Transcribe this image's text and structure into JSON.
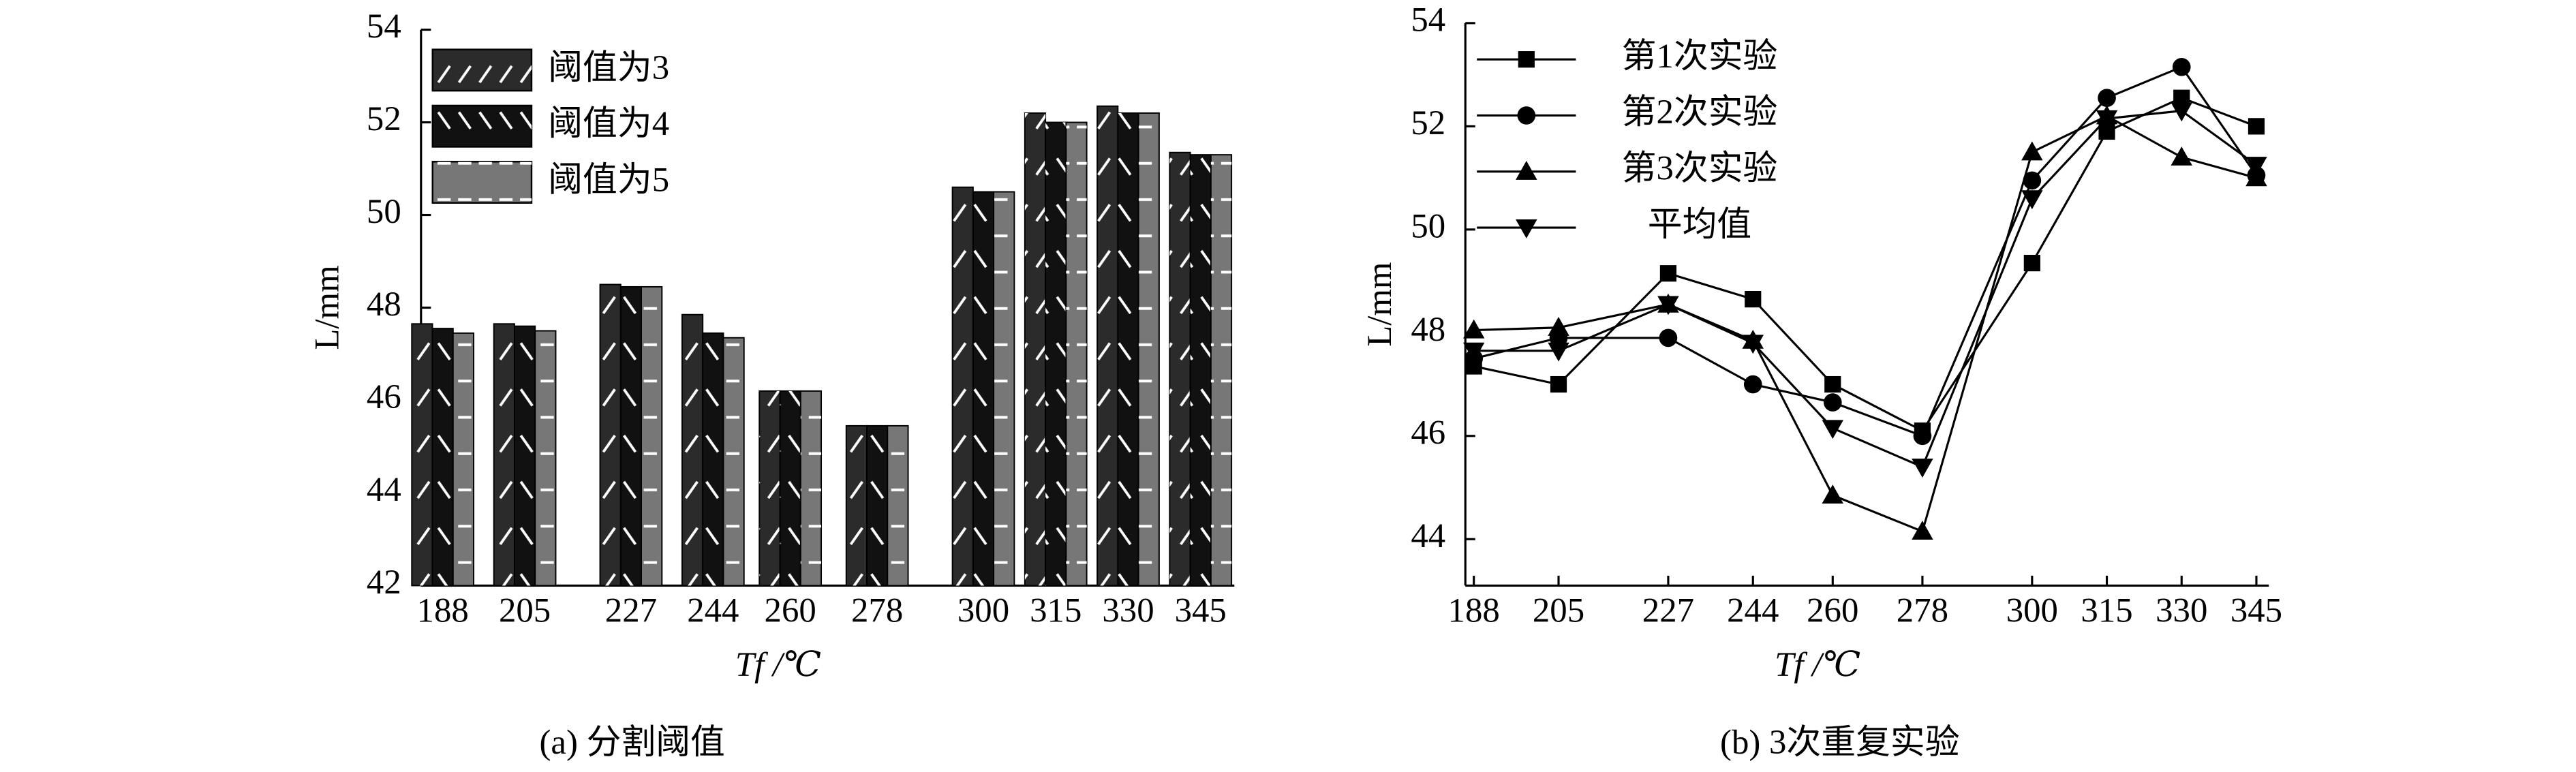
{
  "chart_data": [
    {
      "type": "bar",
      "caption": "(a) 分割阈值",
      "y_label": "L/mm",
      "x_label": "Tf /℃",
      "x": [
        188,
        205,
        227,
        244,
        260,
        278,
        300,
        315,
        330,
        345
      ],
      "xlim": [
        183.5,
        352
      ],
      "ylim": [
        42,
        54
      ],
      "yticks": [
        42,
        44,
        46,
        48,
        50,
        52,
        54
      ],
      "series": [
        {
          "name": "阈值为3",
          "color": "#2b2b2b",
          "hatch": "/",
          "values": [
            47.65,
            47.65,
            48.5,
            47.85,
            46.2,
            45.45,
            50.6,
            52.2,
            52.35,
            51.35
          ]
        },
        {
          "name": "阈值为4",
          "color": "#111111",
          "hatch": "\\",
          "values": [
            47.55,
            47.6,
            48.45,
            47.45,
            46.2,
            45.45,
            50.5,
            52.0,
            52.2,
            51.3
          ]
        },
        {
          "name": "阈值为5",
          "color": "#777777",
          "hatch": "-",
          "values": [
            47.45,
            47.5,
            48.45,
            47.35,
            46.2,
            45.45,
            50.5,
            52.0,
            52.2,
            51.3
          ]
        }
      ]
    },
    {
      "type": "line",
      "caption": "(b) 3次重复实验",
      "y_label": "L/mm",
      "x_label": "Tf /℃",
      "x": [
        188,
        205,
        227,
        244,
        260,
        278,
        300,
        315,
        330,
        345
      ],
      "xlim": [
        186.3,
        347.5
      ],
      "ylim": [
        43.1,
        54
      ],
      "yticks": [
        44,
        46,
        48,
        50,
        52,
        54
      ],
      "series": [
        {
          "name": "第1次实验",
          "color": "#000000",
          "marker": "square",
          "values": [
            47.35,
            47.0,
            49.15,
            48.65,
            47.0,
            46.1,
            49.35,
            51.9,
            52.55,
            52.0
          ]
        },
        {
          "name": "第2次实验",
          "color": "#000000",
          "marker": "circle",
          "values": [
            47.5,
            47.9,
            47.9,
            47.0,
            46.65,
            46.0,
            50.95,
            52.55,
            53.15,
            51.05
          ]
        },
        {
          "name": "第3次实验",
          "color": "#000000",
          "marker": "triangle-up",
          "values": [
            48.05,
            48.1,
            48.55,
            47.85,
            44.85,
            44.15,
            51.5,
            52.2,
            51.4,
            51.0
          ]
        },
        {
          "name": "平均值",
          "color": "#000000",
          "marker": "triangle-down",
          "values": [
            47.65,
            47.65,
            48.55,
            47.8,
            46.15,
            45.4,
            50.6,
            52.15,
            52.3,
            51.25
          ]
        }
      ]
    }
  ]
}
